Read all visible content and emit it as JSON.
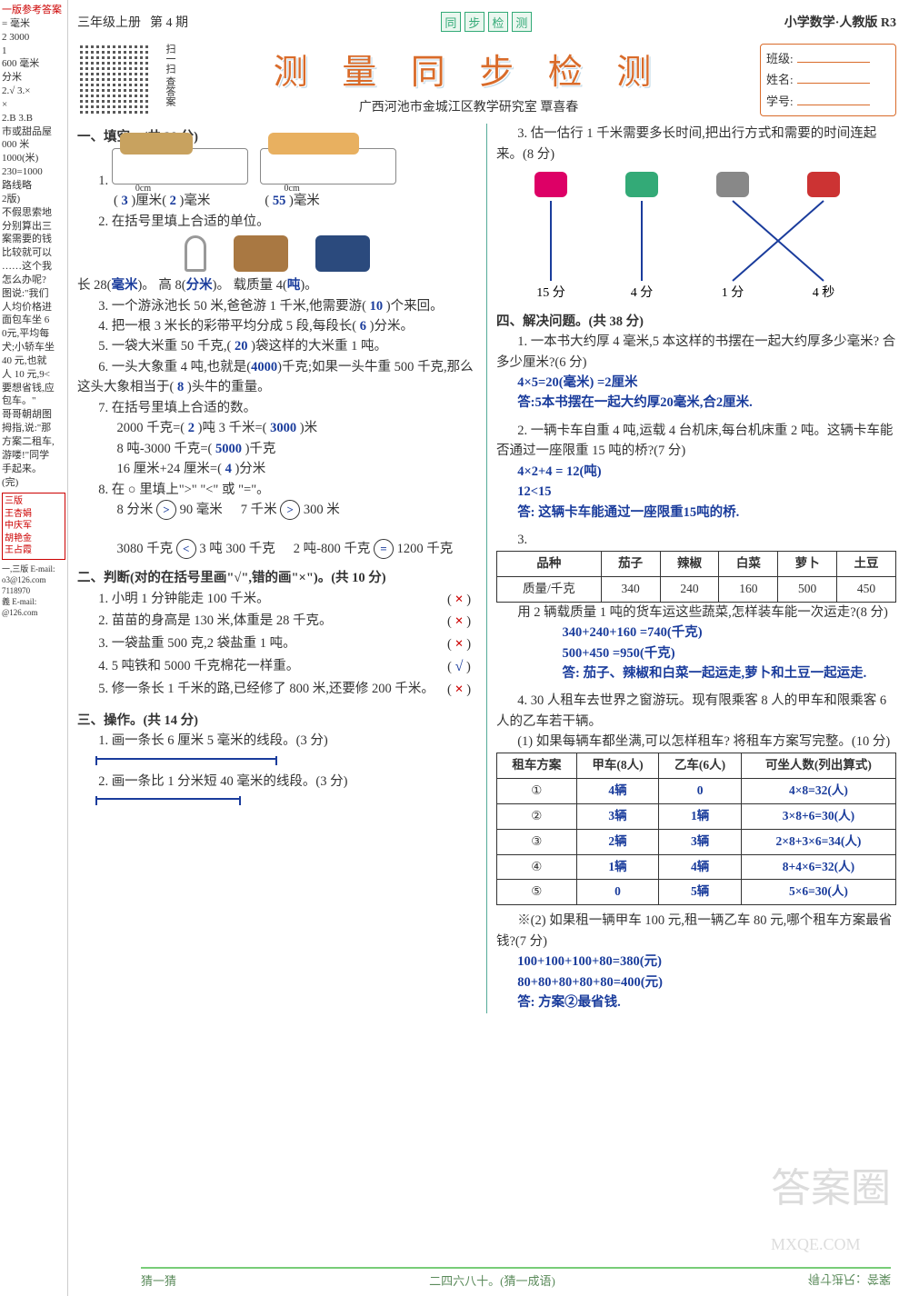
{
  "header": {
    "grade": "三年级上册",
    "issue": "第 4 期",
    "tag": [
      "同",
      "步",
      "检",
      "测"
    ],
    "subject": "小学数学·人教版  R3",
    "title": "测 量 同 步 检 测",
    "subtitle": "广西河池市金城江区教学研究室   覃喜春",
    "qr_label": "扫一扫 查答案"
  },
  "student_box": {
    "class_label": "班级:",
    "name_label": "姓名:",
    "id_label": "学号:"
  },
  "left_strip": {
    "title": "一版参考答案",
    "lines": [
      "= 毫米",
      "2  3000",
      "1",
      "600 毫米",
      "分米",
      "2.√  3.×",
      "×",
      "2.B  3.B",
      "",
      "市或甜品屋",
      "000 米",
      "1000(米)",
      "230=1000",
      "路线略",
      "",
      "",
      "2版)",
      "不假思索地",
      "分别算出三",
      "案需要的钱",
      "比较就可以",
      "……这个我",
      "怎么办呢?",
      "图说:\"我们",
      "人均价格进",
      "面包车坐 6",
      "0元,平均每",
      "犬;小轿车坐",
      "40 元,也就",
      "人 10 元,9<",
      "要想省钱,应",
      "包车。\"",
      "哥哥朝胡图",
      "拇指,说:\"那",
      "方案二租车,",
      "",
      "游喽!\"同学",
      "手起来。",
      "(完)"
    ],
    "box": [
      "三版",
      "王杏娟",
      "中庆军",
      "胡艳金",
      "王占霞"
    ],
    "tail": [
      "一,三版 E-mail:",
      "o3@126.com",
      "",
      "7118970",
      "義 E-mail:",
      "@126.com"
    ]
  },
  "sec1": {
    "heading": "一、填空。(共 38 分)",
    "q1_a1": "3",
    "q1_u1": "厘米",
    "q1_a2": "2",
    "q1_u2": "毫米",
    "q1_a3": "55",
    "q1_u3": "毫米",
    "q2_intro": "2. 在括号里填上合适的单位。",
    "q2_len": "长 28(",
    "q2_a1": "毫米",
    "q2_sep": ")。   高 8(",
    "q2_a2": "分米",
    "q2_sep2": ")。   载质量 4(",
    "q2_a3": "吨",
    "q2_end": ")。",
    "q3": "3. 一个游泳池长 50  米,爸爸游 1 千米,他需要游(",
    "q3_ans": "10",
    "q3_end": ")个来回。",
    "q4": "4. 把一根 3 米长的彩带平均分成 5 段,每段长(",
    "q4_ans": "6",
    "q4_end": ")分米。",
    "q5": "5. 一袋大米重 50 千克,(",
    "q5_ans": "20",
    "q5_end": ")袋这样的大米重 1 吨。",
    "q6": "6. 一头大象重 4 吨,也就是(",
    "q6_ans1": "4000",
    "q6_mid": ")千克;如果一头牛重 500 千克,那么这头大象相当于(",
    "q6_ans2": "8",
    "q6_end": ")头牛的重量。",
    "q7_intro": "7. 在括号里填上合适的数。",
    "q7_l1a": "2000 千克=(",
    "q7_l1v": "2",
    "q7_l1b": ")吨        3 千米=(",
    "q7_l1v2": "3000",
    "q7_l1c": ")米",
    "q7_l2a": "8 吨-3000 千克=(",
    "q7_l2v": "5000",
    "q7_l2b": ")千克",
    "q7_l3a": "16 厘米+24 厘米=(",
    "q7_l3v": "4",
    "q7_l3b": ")分米",
    "q8_intro": "8. 在 ○ 里填上\">\" \"<\" 或 \"=\"。",
    "cmp": [
      {
        "l": "8 分米",
        "op": ">",
        "r": "90 毫米"
      },
      {
        "l": "7 千米",
        "op": ">",
        "r": "300 米"
      },
      {
        "l": "3080 千克",
        "op": "<",
        "r": "3 吨 300 千克"
      },
      {
        "l": "2 吨-800 千克",
        "op": "=",
        "r": "1200 千克"
      }
    ]
  },
  "sec2": {
    "heading": "二、判断(对的在括号里画\"√\",错的画\"×\")。(共 10 分)",
    "items": [
      {
        "q": "1. 小明 1 分钟能走 100 千米。",
        "mark": "×"
      },
      {
        "q": "2. 苗苗的身高是 130 米,体重是 28 千克。",
        "mark": "×"
      },
      {
        "q": "3. 一袋盐重 500 克,2 袋盐重 1 吨。",
        "mark": "×"
      },
      {
        "q": "4. 5 吨铁和 5000 千克棉花一样重。",
        "mark": "√"
      },
      {
        "q": "5. 修一条长 1 千米的路,已经修了 800 米,还要修 200 千米。",
        "mark": "×"
      }
    ]
  },
  "sec3": {
    "heading": "三、操作。(共 14 分)",
    "q1": "1. 画一条长 6 厘米 5 毫米的线段。(3 分)",
    "q2": "2. 画一条比 1 分米短 40 毫米的线段。(3 分)",
    "q3": "3. 估一估行 1 千米需要多长时间,把出行方式和需要的时间连起来。(8 分)",
    "times": [
      "15 分",
      "4 分",
      "1 分",
      "4 秒"
    ],
    "top_labels": [
      "步行",
      "汽车",
      "飞机",
      "自行车"
    ],
    "edges": [
      [
        0,
        0
      ],
      [
        1,
        1
      ],
      [
        2,
        3
      ],
      [
        3,
        2
      ]
    ],
    "line_color": "#1a3c9c"
  },
  "sec4": {
    "heading": "四、解决问题。(共 38 分)",
    "q1": "1. 一本书大约厚 4 毫米,5 本这样的书摆在一起大约厚多少毫米? 合多少厘米?(6 分)",
    "q1_sol": [
      "4×5=20(毫米)  =2厘米",
      "答:5本书摆在一起大约厚20毫米,合2厘米."
    ],
    "q2": "2. 一辆卡车自重 4 吨,运载 4 台机床,每台机床重 2 吨。这辆卡车能否通过一座限重 15 吨的桥?(7 分)",
    "q2_sol": [
      "4×2+4 = 12(吨)",
      "12<15",
      "答: 这辆卡车能通过一座限重15吨的桥."
    ],
    "q3_intro": "3.",
    "q3_table": {
      "headers": [
        "品种",
        "茄子",
        "辣椒",
        "白菜",
        "萝卜",
        "土豆"
      ],
      "row_label": "质量/千克",
      "values": [
        "340",
        "240",
        "160",
        "500",
        "450"
      ]
    },
    "q3_q": "用 2 辆载质量 1 吨的货车运这些蔬菜,怎样装车能一次运走?(8 分)",
    "q3_sol": [
      "340+240+160 =740(千克)",
      "500+450 =950(千克)",
      "答: 茄子、辣椒和白菜一起运走,萝卜和土豆一起运走."
    ],
    "q4": "4. 30 人租车去世界之窗游玩。现有限乘客 8 人的甲车和限乘客 6 人的乙车若干辆。",
    "q4_1": "(1) 如果每辆车都坐满,可以怎样租车? 将租车方案写完整。(10 分)",
    "q4_table": {
      "headers": [
        "租车方案",
        "甲车(8人)",
        "乙车(6人)",
        "可坐人数(列出算式)"
      ],
      "rows": [
        [
          "①",
          "4辆",
          "0",
          "4×8=32(人)"
        ],
        [
          "②",
          "3辆",
          "1辆",
          "3×8+6=30(人)"
        ],
        [
          "③",
          "2辆",
          "3辆",
          "2×8+3×6=34(人)"
        ],
        [
          "④",
          "1辆",
          "4辆",
          "8+4×6=32(人)"
        ],
        [
          "⑤",
          "0",
          "5辆",
          "5×6=30(人)"
        ]
      ],
      "printed_cols": [
        0
      ],
      "handwrite_cols": [
        1,
        2,
        3
      ]
    },
    "q4_2": "※(2) 如果租一辆甲车 100 元,租一辆乙车 80 元,哪个租车方案最省钱?(7 分)",
    "q4_2_sol": [
      "100+100+100+80=380(元)",
      "80+80+80+80+80=400(元)",
      "答: 方案②最省钱."
    ]
  },
  "footer": {
    "left": "猜一猜",
    "mid": "二四六八十。(猜一成语)",
    "right": "得寸进尺：答案"
  },
  "watermark": "答案圈",
  "watermark_sub": "MXQE.COM",
  "style": {
    "handwrite_color": "#1a3c9c",
    "title_color": "#d96b2a",
    "accent_green": "#5a9955"
  }
}
